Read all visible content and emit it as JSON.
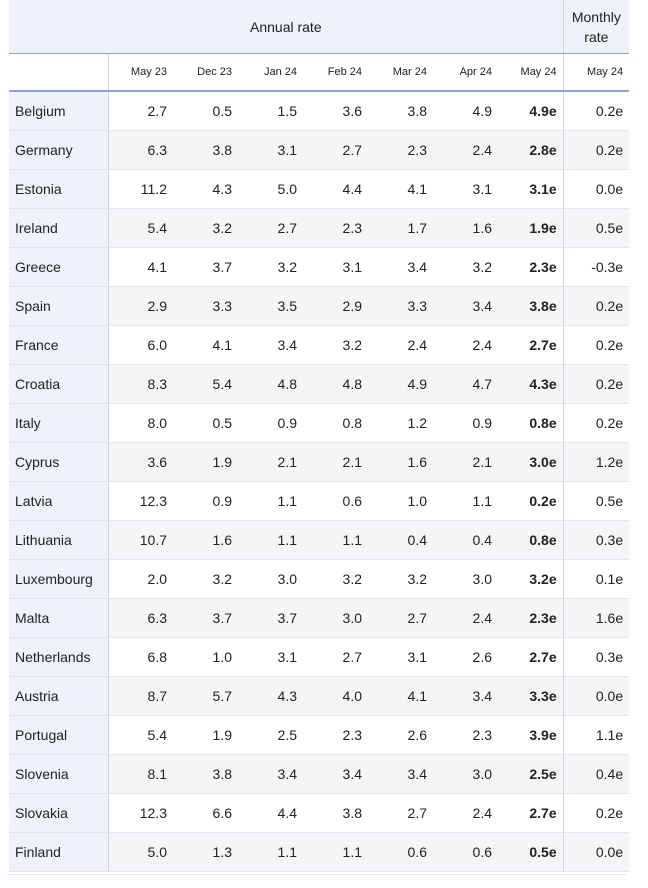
{
  "header": {
    "annual_label": "Annual rate",
    "monthly_label_line1": "Monthly",
    "monthly_label_line2": "rate",
    "annual_months": [
      "May 23",
      "Dec 23",
      "Jan 24",
      "Feb 24",
      "Mar 24",
      "Apr 24",
      "May 24"
    ],
    "monthly_month": "May 24"
  },
  "rows": [
    {
      "country": "Belgium",
      "values": [
        "2.7",
        "0.5",
        "1.5",
        "3.6",
        "3.8",
        "4.9",
        "4.9e"
      ],
      "monthly": "0.2e"
    },
    {
      "country": "Germany",
      "values": [
        "6.3",
        "3.8",
        "3.1",
        "2.7",
        "2.3",
        "2.4",
        "2.8e"
      ],
      "monthly": "0.2e"
    },
    {
      "country": "Estonia",
      "values": [
        "11.2",
        "4.3",
        "5.0",
        "4.4",
        "4.1",
        "3.1",
        "3.1e"
      ],
      "monthly": "0.0e"
    },
    {
      "country": "Ireland",
      "values": [
        "5.4",
        "3.2",
        "2.7",
        "2.3",
        "1.7",
        "1.6",
        "1.9e"
      ],
      "monthly": "0.5e"
    },
    {
      "country": "Greece",
      "values": [
        "4.1",
        "3.7",
        "3.2",
        "3.1",
        "3.4",
        "3.2",
        "2.3e"
      ],
      "monthly": "-0.3e"
    },
    {
      "country": "Spain",
      "values": [
        "2.9",
        "3.3",
        "3.5",
        "2.9",
        "3.3",
        "3.4",
        "3.8e"
      ],
      "monthly": "0.2e"
    },
    {
      "country": "France",
      "values": [
        "6.0",
        "4.1",
        "3.4",
        "3.2",
        "2.4",
        "2.4",
        "2.7e"
      ],
      "monthly": "0.2e"
    },
    {
      "country": "Croatia",
      "values": [
        "8.3",
        "5.4",
        "4.8",
        "4.8",
        "4.9",
        "4.7",
        "4.3e"
      ],
      "monthly": "0.2e"
    },
    {
      "country": "Italy",
      "values": [
        "8.0",
        "0.5",
        "0.9",
        "0.8",
        "1.2",
        "0.9",
        "0.8e"
      ],
      "monthly": "0.2e"
    },
    {
      "country": "Cyprus",
      "values": [
        "3.6",
        "1.9",
        "2.1",
        "2.1",
        "1.6",
        "2.1",
        "3.0e"
      ],
      "monthly": "1.2e"
    },
    {
      "country": "Latvia",
      "values": [
        "12.3",
        "0.9",
        "1.1",
        "0.6",
        "1.0",
        "1.1",
        "0.2e"
      ],
      "monthly": "0.5e"
    },
    {
      "country": "Lithuania",
      "values": [
        "10.7",
        "1.6",
        "1.1",
        "1.1",
        "0.4",
        "0.4",
        "0.8e"
      ],
      "monthly": "0.3e"
    },
    {
      "country": "Luxembourg",
      "values": [
        "2.0",
        "3.2",
        "3.0",
        "3.2",
        "3.2",
        "3.0",
        "3.2e"
      ],
      "monthly": "0.1e"
    },
    {
      "country": "Malta",
      "values": [
        "6.3",
        "3.7",
        "3.7",
        "3.0",
        "2.7",
        "2.4",
        "2.3e"
      ],
      "monthly": "1.6e"
    },
    {
      "country": "Netherlands",
      "values": [
        "6.8",
        "1.0",
        "3.1",
        "2.7",
        "3.1",
        "2.6",
        "2.7e"
      ],
      "monthly": "0.3e"
    },
    {
      "country": "Austria",
      "values": [
        "8.7",
        "5.7",
        "4.3",
        "4.0",
        "4.1",
        "3.4",
        "3.3e"
      ],
      "monthly": "0.0e"
    },
    {
      "country": "Portugal",
      "values": [
        "5.4",
        "1.9",
        "2.5",
        "2.3",
        "2.6",
        "2.3",
        "3.9e"
      ],
      "monthly": "1.1e"
    },
    {
      "country": "Slovenia",
      "values": [
        "8.1",
        "3.8",
        "3.4",
        "3.4",
        "3.4",
        "3.0",
        "2.5e"
      ],
      "monthly": "0.4e"
    },
    {
      "country": "Slovakia",
      "values": [
        "12.3",
        "6.6",
        "4.4",
        "3.8",
        "2.7",
        "2.4",
        "2.7e"
      ],
      "monthly": "0.2e"
    },
    {
      "country": "Finland",
      "values": [
        "5.0",
        "1.3",
        "1.1",
        "1.1",
        "0.6",
        "0.6",
        "0.5e"
      ],
      "monthly": "0.0e"
    }
  ]
}
